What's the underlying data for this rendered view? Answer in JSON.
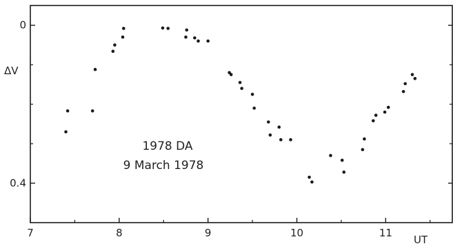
{
  "chart_data": {
    "type": "scatter",
    "xlabel": "UT",
    "ylabel": "ΔV",
    "xlim": [
      7,
      11.75
    ],
    "ylim": [
      -0.05,
      0.5
    ],
    "y_inverted": true,
    "grid": false,
    "x_ticks": [
      7,
      8,
      9,
      10,
      11
    ],
    "x_tick_labels": [
      "7",
      "8",
      "9",
      "10",
      "11"
    ],
    "y_ticks": [
      0,
      0.4
    ],
    "y_tick_labels": [
      "0",
      "0.4"
    ],
    "annotation": [
      "1978 DA",
      "9 March 1978"
    ],
    "series": [
      {
        "marker_color": "#1a1a1a",
        "points": [
          [
            7.4,
            0.27
          ],
          [
            7.42,
            0.217
          ],
          [
            7.7,
            0.217
          ],
          [
            7.73,
            0.112
          ],
          [
            7.93,
            0.066
          ],
          [
            7.95,
            0.05
          ],
          [
            8.04,
            0.03
          ],
          [
            8.05,
            0.008
          ],
          [
            8.49,
            0.007
          ],
          [
            8.55,
            0.008
          ],
          [
            8.75,
            0.03
          ],
          [
            8.76,
            0.012
          ],
          [
            8.85,
            0.032
          ],
          [
            8.89,
            0.04
          ],
          [
            9.0,
            0.04
          ],
          [
            9.24,
            0.12
          ],
          [
            9.26,
            0.125
          ],
          [
            9.36,
            0.145
          ],
          [
            9.38,
            0.16
          ],
          [
            9.5,
            0.175
          ],
          [
            9.52,
            0.21
          ],
          [
            9.68,
            0.245
          ],
          [
            9.7,
            0.278
          ],
          [
            9.8,
            0.258
          ],
          [
            9.82,
            0.29
          ],
          [
            9.93,
            0.29
          ],
          [
            10.14,
            0.385
          ],
          [
            10.17,
            0.397
          ],
          [
            10.38,
            0.33
          ],
          [
            10.51,
            0.342
          ],
          [
            10.53,
            0.372
          ],
          [
            10.74,
            0.315
          ],
          [
            10.76,
            0.288
          ],
          [
            10.86,
            0.242
          ],
          [
            10.89,
            0.228
          ],
          [
            10.99,
            0.22
          ],
          [
            11.03,
            0.208
          ],
          [
            11.2,
            0.168
          ],
          [
            11.22,
            0.148
          ],
          [
            11.3,
            0.125
          ],
          [
            11.33,
            0.135
          ]
        ]
      }
    ]
  }
}
